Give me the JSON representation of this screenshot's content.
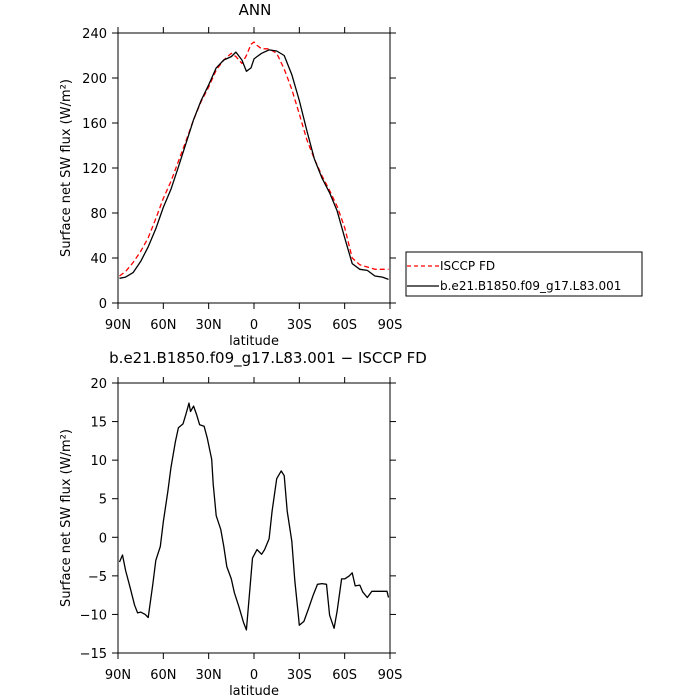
{
  "chart_data": [
    {
      "type": "line",
      "title": "ANN",
      "xlabel": "latitude",
      "ylabel": "Surface net SW flux (W/m²)",
      "xlim": [
        90,
        -90
      ],
      "ylim": [
        0,
        240
      ],
      "x_ticks": [
        90,
        60,
        30,
        0,
        -30,
        -60,
        -90
      ],
      "x_tick_labels": [
        "90N",
        "60N",
        "30N",
        "0",
        "30S",
        "60S",
        "90S"
      ],
      "y_ticks": [
        0,
        40,
        80,
        120,
        160,
        200,
        240
      ],
      "y_tick_labels": [
        "0",
        "40",
        "80",
        "120",
        "160",
        "200",
        "240"
      ],
      "grid": false,
      "legend_position": "right",
      "series": [
        {
          "name": "ISCCP FD",
          "color": "#ff0000",
          "dash": "dashed",
          "x": [
            89,
            85,
            80,
            75,
            70,
            65,
            60,
            55,
            50,
            45,
            40,
            35,
            30,
            25,
            20,
            15,
            12,
            8,
            5,
            2,
            0,
            -2,
            -5,
            -10,
            -15,
            -20,
            -25,
            -30,
            -35,
            -40,
            -45,
            -50,
            -55,
            -60,
            -65,
            -70,
            -75,
            -80,
            -85,
            -89
          ],
          "y": [
            24,
            28,
            36,
            46,
            58,
            75,
            93,
            108,
            126,
            144,
            163,
            179,
            192,
            207,
            216,
            222,
            219,
            213,
            220,
            230,
            232,
            229,
            226,
            226,
            222,
            208,
            190,
            168,
            145,
            128,
            113,
            100,
            86,
            67,
            40,
            34,
            32,
            30,
            30,
            30
          ]
        },
        {
          "name": "b.e21.B1850.f09_g17.L83.001",
          "color": "#000000",
          "dash": "solid",
          "x": [
            89,
            85,
            80,
            75,
            70,
            65,
            60,
            55,
            50,
            45,
            40,
            35,
            30,
            25,
            20,
            15,
            12,
            8,
            5,
            2,
            0,
            -2,
            -5,
            -10,
            -15,
            -20,
            -25,
            -30,
            -35,
            -40,
            -45,
            -50,
            -55,
            -60,
            -65,
            -70,
            -75,
            -80,
            -85,
            -89
          ],
          "y": [
            22,
            23,
            27,
            37,
            50,
            66,
            85,
            101,
            121,
            142,
            163,
            180,
            194,
            209,
            216,
            219,
            223,
            216,
            206,
            209,
            217,
            219,
            222,
            225,
            224,
            220,
            203,
            180,
            153,
            128,
            111,
            98,
            82,
            58,
            35,
            30,
            29,
            24,
            23,
            21
          ]
        }
      ]
    },
    {
      "type": "line",
      "title": "b.e21.B1850.f09_g17.L83.001 − ISCCP FD",
      "xlabel": "latitude",
      "ylabel": "Surface net SW flux (W/m²)",
      "xlim": [
        90,
        -90
      ],
      "ylim": [
        -15,
        20
      ],
      "x_ticks": [
        90,
        60,
        30,
        0,
        -30,
        -60,
        -90
      ],
      "x_tick_labels": [
        "90N",
        "60N",
        "30N",
        "0",
        "30S",
        "60S",
        "90S"
      ],
      "y_ticks": [
        -15,
        -10,
        -5,
        0,
        5,
        10,
        15,
        20
      ],
      "y_tick_labels": [
        "−15",
        "−10",
        "−5",
        "0",
        "5",
        "10",
        "15",
        "20"
      ],
      "grid": false,
      "series": [
        {
          "color": "#000000",
          "x": [
            89,
            87,
            85,
            82,
            79,
            77,
            75,
            72,
            70,
            67,
            65,
            62,
            60,
            57,
            55,
            52,
            50,
            47,
            45,
            43,
            42,
            40,
            38,
            36,
            33,
            31,
            28,
            27,
            25,
            22,
            20,
            18,
            15,
            13,
            10,
            7,
            5,
            3,
            1,
            -2,
            -5,
            -7,
            -10,
            -12,
            -15,
            -18,
            -20,
            -22,
            -25,
            -27,
            -29,
            -30,
            -33,
            -36,
            -39,
            -42,
            -45,
            -48,
            -50,
            -53,
            -55,
            -58,
            -60,
            -63,
            -65,
            -67,
            -70,
            -72,
            -75,
            -78,
            -80,
            -83,
            -85,
            -88,
            -89
          ],
          "y": [
            -3.2,
            -2.3,
            -4.3,
            -6.5,
            -8.8,
            -9.8,
            -9.7,
            -10.0,
            -10.4,
            -6.1,
            -3.0,
            -1.2,
            2.0,
            6.0,
            9.0,
            12.4,
            14.2,
            14.7,
            16.0,
            17.4,
            16.3,
            17.0,
            15.9,
            14.6,
            14.4,
            12.9,
            10.1,
            6.9,
            2.8,
            1.0,
            -1.2,
            -3.8,
            -5.4,
            -7.2,
            -9.0,
            -11.0,
            -12.0,
            -7.3,
            -2.7,
            -1.6,
            -2.2,
            -1.6,
            -0.2,
            3.4,
            7.6,
            8.6,
            8.0,
            3.4,
            -0.5,
            -5.6,
            -9.4,
            -11.4,
            -10.9,
            -9.3,
            -7.6,
            -6.1,
            -6.0,
            -6.1,
            -10.1,
            -11.8,
            -9.6,
            -5.4,
            -5.4,
            -5.0,
            -4.6,
            -6.3,
            -6.2,
            -7.1,
            -7.8,
            -7.0,
            -7.0,
            -7.0,
            -7.0,
            -7.0,
            -7.8
          ]
        }
      ]
    }
  ]
}
